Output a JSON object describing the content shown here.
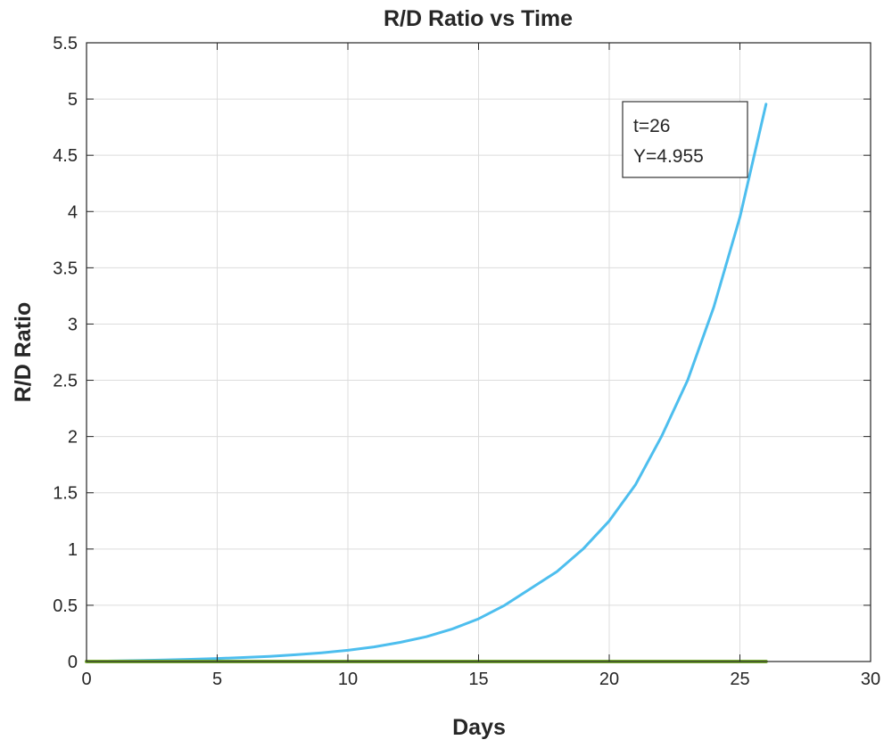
{
  "chart_data": {
    "type": "line",
    "title": "R/D Ratio vs Time",
    "xlabel": "Days",
    "ylabel": "R/D Ratio",
    "xlim": [
      0,
      30
    ],
    "ylim": [
      0,
      5.5
    ],
    "xticks": [
      0,
      5,
      10,
      15,
      20,
      25,
      30
    ],
    "yticks": [
      0,
      0.5,
      1,
      1.5,
      2,
      2.5,
      3,
      3.5,
      4,
      4.5,
      5,
      5.5
    ],
    "xtick_labels": [
      "0",
      "5",
      "10",
      "15",
      "20",
      "25",
      "30"
    ],
    "ytick_labels": [
      "0",
      "0.5",
      "1",
      "1.5",
      "2",
      "2.5",
      "3",
      "3.5",
      "4",
      "4.5",
      "5",
      "5.5"
    ],
    "grid": true,
    "series": [
      {
        "color": "#4DBEEE",
        "x": [
          0,
          1,
          2,
          3,
          4,
          5,
          6,
          7,
          8,
          9,
          10,
          11,
          12,
          13,
          14,
          15,
          16,
          17,
          18,
          19,
          20,
          21,
          22,
          23,
          24,
          25,
          26
        ],
        "values": [
          0.0,
          0.005,
          0.009,
          0.014,
          0.02,
          0.027,
          0.036,
          0.046,
          0.06,
          0.078,
          0.1,
          0.13,
          0.17,
          0.22,
          0.29,
          0.38,
          0.5,
          0.65,
          0.8,
          1.0,
          1.25,
          1.57,
          2.0,
          2.5,
          3.15,
          3.95,
          4.955
        ]
      },
      {
        "color": "#77AC30",
        "x": [
          0,
          26
        ],
        "values": [
          0,
          0
        ]
      }
    ],
    "datatip": {
      "lines": [
        "t=26",
        "Y=4.955"
      ],
      "x": 26,
      "y": 4.955
    }
  }
}
